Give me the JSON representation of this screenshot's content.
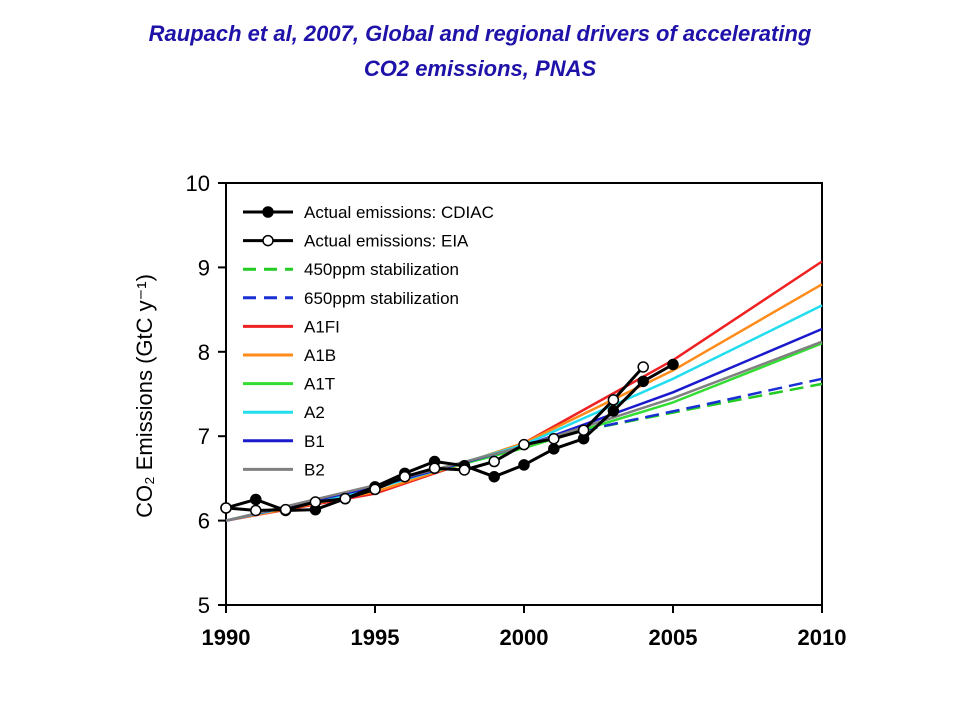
{
  "title": {
    "line1": "Raupach et al, 2007, Global and regional drivers of accelerating",
    "line2": "CO2 emissions, PNAS",
    "color": "#1f12a8"
  },
  "chart_data": {
    "type": "line",
    "ylabel": "CO₂ Emissions (GtC y⁻¹)",
    "xlim": [
      1990,
      2010
    ],
    "ylim": [
      5,
      10
    ],
    "x_ticks": [
      1990,
      1995,
      2000,
      2005,
      2010
    ],
    "y_ticks": [
      5,
      6,
      7,
      8,
      9,
      10
    ],
    "grid": false,
    "legend_position": "top-left",
    "series": [
      {
        "name": "Actual emissions: CDIAC",
        "color": "#000000",
        "style": "solid",
        "marker": "filled",
        "x": [
          1990,
          1991,
          1992,
          1993,
          1994,
          1995,
          1996,
          1997,
          1998,
          1999,
          2000,
          2001,
          2002,
          2003,
          2004,
          2005
        ],
        "y": [
          6.15,
          6.25,
          6.12,
          6.13,
          6.26,
          6.4,
          6.56,
          6.7,
          6.65,
          6.52,
          6.66,
          6.85,
          6.97,
          7.3,
          7.65,
          7.85
        ]
      },
      {
        "name": "Actual emissions: EIA",
        "color": "#000000",
        "style": "solid",
        "marker": "open",
        "x": [
          1990,
          1991,
          1992,
          1993,
          1994,
          1995,
          1996,
          1997,
          1998,
          1999,
          2000,
          2001,
          2002,
          2003,
          2004
        ],
        "y": [
          6.15,
          6.12,
          6.13,
          6.22,
          6.26,
          6.37,
          6.52,
          6.62,
          6.6,
          6.7,
          6.9,
          6.97,
          7.07,
          7.43,
          7.82
        ]
      },
      {
        "name": "450ppm stabilization",
        "color": "#22cc22",
        "style": "dashed",
        "x": [
          2002,
          2006,
          2010
        ],
        "y": [
          7.07,
          7.35,
          7.62
        ]
      },
      {
        "name": "650ppm stabilization",
        "color": "#1a2fd4",
        "style": "dashed",
        "x": [
          2002,
          2006,
          2010
        ],
        "y": [
          7.07,
          7.37,
          7.68
        ]
      },
      {
        "name": "A1FI",
        "color": "#ee2222",
        "style": "solid",
        "x": [
          1990,
          1995,
          2000,
          2005,
          2010
        ],
        "y": [
          6.0,
          6.32,
          6.92,
          7.9,
          9.07
        ]
      },
      {
        "name": "A1B",
        "color": "#ff8c1a",
        "style": "solid",
        "x": [
          1990,
          1995,
          2000,
          2005,
          2010
        ],
        "y": [
          6.0,
          6.34,
          6.92,
          7.78,
          8.8
        ]
      },
      {
        "name": "A1T",
        "color": "#33dd33",
        "style": "solid",
        "x": [
          1990,
          1995,
          2000,
          2005,
          2010
        ],
        "y": [
          6.0,
          6.4,
          6.86,
          7.4,
          8.1
        ]
      },
      {
        "name": "A2",
        "color": "#22ddee",
        "style": "solid",
        "x": [
          1990,
          1995,
          2000,
          2005,
          2010
        ],
        "y": [
          6.0,
          6.38,
          6.9,
          7.68,
          8.55
        ]
      },
      {
        "name": "B1",
        "color": "#1a1acc",
        "style": "solid",
        "x": [
          1990,
          1995,
          2000,
          2005,
          2010
        ],
        "y": [
          6.0,
          6.4,
          6.88,
          7.52,
          8.27
        ]
      },
      {
        "name": "B2",
        "color": "#808080",
        "style": "solid",
        "x": [
          1990,
          1995,
          2000,
          2005,
          2010
        ],
        "y": [
          6.0,
          6.42,
          6.88,
          7.45,
          8.12
        ]
      }
    ]
  }
}
